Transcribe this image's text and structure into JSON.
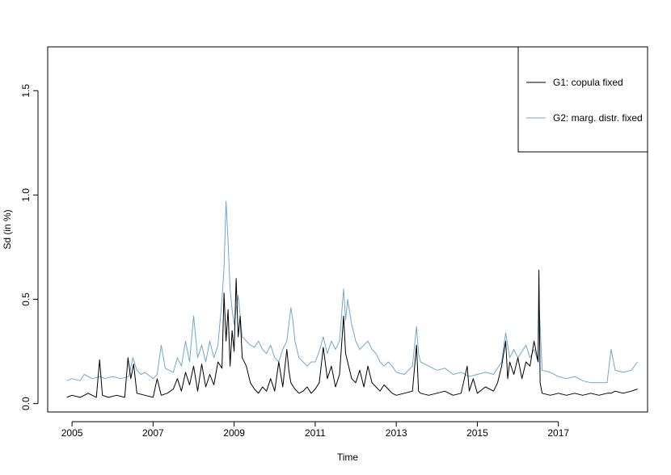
{
  "chart_data": {
    "type": "line",
    "title": "",
    "xlabel": "Time",
    "ylabel": "Sd (in %)",
    "xlim": [
      2004.4,
      2019.2
    ],
    "ylim": [
      -0.04,
      1.71
    ],
    "x_ticks": [
      2005,
      2007,
      2009,
      2011,
      2013,
      2015,
      2017
    ],
    "x_tick_labels": [
      "2005",
      "2007",
      "2009",
      "2011",
      "2013",
      "2015",
      "2017"
    ],
    "y_ticks": [
      0.0,
      0.5,
      1.0,
      1.5
    ],
    "y_tick_labels": [
      "0.0",
      "0.5",
      "1.0",
      "1.5"
    ],
    "grid": false,
    "legend_position": "top-right",
    "series": [
      {
        "name": "G1: copula fixed",
        "color": "#000000",
        "x": [
          2004.87,
          2005.0,
          2005.2,
          2005.4,
          2005.6,
          2005.68,
          2005.75,
          2005.9,
          2006.1,
          2006.3,
          2006.38,
          2006.45,
          2006.52,
          2006.6,
          2006.8,
          2007.0,
          2007.1,
          2007.2,
          2007.35,
          2007.5,
          2007.6,
          2007.7,
          2007.8,
          2007.9,
          2008.0,
          2008.1,
          2008.2,
          2008.3,
          2008.4,
          2008.5,
          2008.6,
          2008.7,
          2008.75,
          2008.8,
          2008.85,
          2008.9,
          2008.95,
          2009.0,
          2009.05,
          2009.1,
          2009.15,
          2009.2,
          2009.3,
          2009.4,
          2009.5,
          2009.6,
          2009.7,
          2009.8,
          2009.9,
          2010.0,
          2010.1,
          2010.2,
          2010.3,
          2010.35,
          2010.4,
          2010.5,
          2010.6,
          2010.7,
          2010.8,
          2010.9,
          2011.0,
          2011.1,
          2011.2,
          2011.3,
          2011.4,
          2011.5,
          2011.6,
          2011.7,
          2011.75,
          2011.8,
          2011.9,
          2012.0,
          2012.1,
          2012.2,
          2012.3,
          2012.4,
          2012.5,
          2012.6,
          2012.7,
          2012.8,
          2012.9,
          2013.0,
          2013.2,
          2013.4,
          2013.5,
          2013.55,
          2013.6,
          2013.8,
          2014.0,
          2014.2,
          2014.4,
          2014.6,
          2014.75,
          2014.8,
          2014.9,
          2015.0,
          2015.2,
          2015.4,
          2015.5,
          2015.6,
          2015.7,
          2015.75,
          2015.8,
          2015.9,
          2016.0,
          2016.1,
          2016.2,
          2016.3,
          2016.4,
          2016.5,
          2016.52,
          2016.55,
          2016.6,
          2016.8,
          2017.0,
          2017.2,
          2017.4,
          2017.6,
          2017.8,
          2018.0,
          2018.2,
          2018.3,
          2018.4,
          2018.6,
          2018.8,
          2018.95
        ],
        "values": [
          0.03,
          0.04,
          0.03,
          0.05,
          0.03,
          0.21,
          0.04,
          0.03,
          0.04,
          0.03,
          0.22,
          0.12,
          0.19,
          0.05,
          0.04,
          0.03,
          0.12,
          0.04,
          0.05,
          0.07,
          0.12,
          0.06,
          0.15,
          0.09,
          0.18,
          0.06,
          0.19,
          0.08,
          0.14,
          0.09,
          0.2,
          0.17,
          0.53,
          0.3,
          0.45,
          0.18,
          0.35,
          0.25,
          0.6,
          0.32,
          0.42,
          0.22,
          0.18,
          0.1,
          0.07,
          0.05,
          0.08,
          0.06,
          0.12,
          0.06,
          0.2,
          0.08,
          0.26,
          0.16,
          0.1,
          0.07,
          0.05,
          0.06,
          0.08,
          0.05,
          0.07,
          0.1,
          0.27,
          0.12,
          0.18,
          0.08,
          0.14,
          0.42,
          0.24,
          0.2,
          0.12,
          0.1,
          0.16,
          0.08,
          0.18,
          0.1,
          0.08,
          0.06,
          0.09,
          0.07,
          0.05,
          0.04,
          0.05,
          0.06,
          0.28,
          0.06,
          0.05,
          0.04,
          0.05,
          0.06,
          0.04,
          0.05,
          0.18,
          0.06,
          0.12,
          0.05,
          0.08,
          0.06,
          0.1,
          0.18,
          0.3,
          0.12,
          0.2,
          0.14,
          0.22,
          0.12,
          0.2,
          0.18,
          0.3,
          0.2,
          0.64,
          0.1,
          0.05,
          0.04,
          0.05,
          0.04,
          0.05,
          0.04,
          0.05,
          0.04,
          0.05,
          0.05,
          0.06,
          0.05,
          0.06,
          0.07
        ]
      },
      {
        "name": "G2: marg. distr. fixed",
        "color": "#6fa8d0",
        "x": [
          2004.87,
          2005.0,
          2005.2,
          2005.3,
          2005.5,
          2005.7,
          2005.8,
          2006.0,
          2006.2,
          2006.4,
          2006.5,
          2006.6,
          2006.7,
          2006.8,
          2007.0,
          2007.1,
          2007.2,
          2007.3,
          2007.5,
          2007.6,
          2007.7,
          2007.8,
          2007.9,
          2008.0,
          2008.1,
          2008.2,
          2008.3,
          2008.4,
          2008.5,
          2008.6,
          2008.7,
          2008.75,
          2008.8,
          2008.85,
          2008.9,
          2008.95,
          2009.0,
          2009.05,
          2009.1,
          2009.2,
          2009.3,
          2009.4,
          2009.5,
          2009.6,
          2009.7,
          2009.8,
          2009.9,
          2010.0,
          2010.1,
          2010.2,
          2010.3,
          2010.4,
          2010.45,
          2010.5,
          2010.6,
          2010.7,
          2010.8,
          2010.9,
          2011.0,
          2011.1,
          2011.2,
          2011.3,
          2011.4,
          2011.5,
          2011.6,
          2011.7,
          2011.75,
          2011.8,
          2011.9,
          2012.0,
          2012.1,
          2012.2,
          2012.3,
          2012.4,
          2012.5,
          2012.6,
          2012.7,
          2012.8,
          2012.9,
          2013.0,
          2013.2,
          2013.4,
          2013.5,
          2013.55,
          2013.6,
          2013.8,
          2014.0,
          2014.2,
          2014.4,
          2014.6,
          2014.8,
          2015.0,
          2015.2,
          2015.4,
          2015.6,
          2015.7,
          2015.8,
          2015.9,
          2016.0,
          2016.2,
          2016.3,
          2016.4,
          2016.5,
          2016.53,
          2016.6,
          2016.8,
          2017.0,
          2017.2,
          2017.4,
          2017.6,
          2017.8,
          2018.0,
          2018.2,
          2018.3,
          2018.4,
          2018.6,
          2018.8,
          2018.95
        ],
        "values": [
          0.11,
          0.12,
          0.11,
          0.14,
          0.12,
          0.13,
          0.12,
          0.13,
          0.12,
          0.13,
          0.22,
          0.16,
          0.14,
          0.15,
          0.12,
          0.14,
          0.28,
          0.17,
          0.15,
          0.22,
          0.18,
          0.3,
          0.2,
          0.42,
          0.22,
          0.28,
          0.2,
          0.3,
          0.22,
          0.28,
          0.5,
          0.65,
          0.97,
          0.78,
          0.55,
          0.45,
          0.38,
          0.45,
          0.52,
          0.32,
          0.3,
          0.28,
          0.27,
          0.3,
          0.26,
          0.24,
          0.28,
          0.22,
          0.2,
          0.26,
          0.3,
          0.46,
          0.4,
          0.3,
          0.22,
          0.2,
          0.18,
          0.2,
          0.2,
          0.25,
          0.32,
          0.24,
          0.3,
          0.26,
          0.3,
          0.55,
          0.4,
          0.5,
          0.38,
          0.3,
          0.26,
          0.28,
          0.3,
          0.26,
          0.24,
          0.2,
          0.18,
          0.2,
          0.18,
          0.15,
          0.14,
          0.18,
          0.37,
          0.24,
          0.2,
          0.18,
          0.16,
          0.17,
          0.14,
          0.15,
          0.13,
          0.14,
          0.15,
          0.14,
          0.2,
          0.34,
          0.22,
          0.26,
          0.22,
          0.28,
          0.22,
          0.26,
          0.2,
          0.45,
          0.16,
          0.15,
          0.13,
          0.12,
          0.13,
          0.11,
          0.1,
          0.1,
          0.1,
          0.26,
          0.16,
          0.15,
          0.16,
          0.2
        ]
      }
    ]
  }
}
